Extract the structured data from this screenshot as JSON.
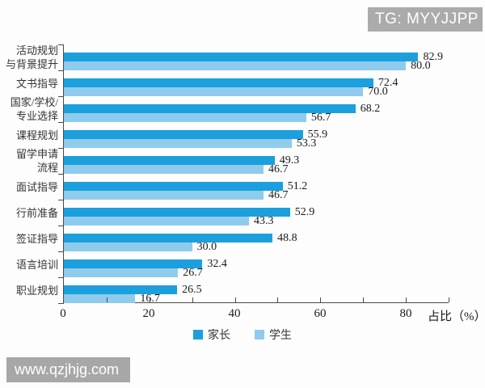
{
  "badge": {
    "text": "TG: MYYJJPP"
  },
  "watermark": {
    "text": "www.qzjhjg.com"
  },
  "chart_data": {
    "type": "bar",
    "orientation": "horizontal",
    "title": "",
    "xlabel": "占比（%）",
    "ylabel": "",
    "xlim": [
      0,
      90
    ],
    "xticks": [
      0,
      20,
      40,
      60,
      80
    ],
    "minor_tick_step": 10,
    "grid": false,
    "legend_position": "bottom",
    "categories": [
      [
        "活动规划",
        "与背景提升"
      ],
      [
        "文书指导"
      ],
      [
        "国家/学校/",
        "专业选择"
      ],
      [
        "课程规划"
      ],
      [
        "留学申请",
        "流程"
      ],
      [
        "面试指导"
      ],
      [
        "行前准备"
      ],
      [
        "签证指导"
      ],
      [
        "语言培训"
      ],
      [
        "职业规划"
      ]
    ],
    "series": [
      {
        "name": "家长",
        "color": "#1b9fdd",
        "values": [
          82.9,
          72.4,
          68.2,
          55.9,
          49.3,
          51.2,
          52.9,
          48.8,
          32.4,
          26.5
        ]
      },
      {
        "name": "学生",
        "color": "#8fcbed",
        "values": [
          80.0,
          70.0,
          56.7,
          53.3,
          46.7,
          46.7,
          43.3,
          30.0,
          26.7,
          16.7
        ]
      }
    ]
  }
}
